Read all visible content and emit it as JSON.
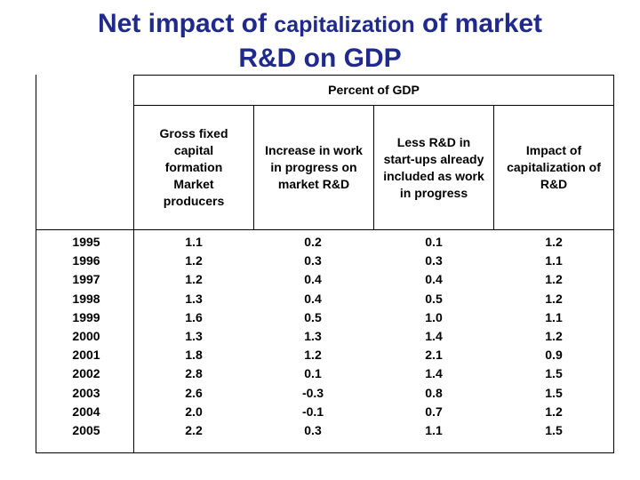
{
  "title": {
    "part1": "Net impact of ",
    "part2": "capitalization",
    "part3": " of market",
    "line2": "R&D on GDP"
  },
  "table": {
    "group_header": "Percent of GDP",
    "columns": [
      "Gross fixed capital formation Market producers",
      "Increase in work in progress on market R&D",
      "Less R&D in start-ups already included as work in progress",
      "Impact of capitalization of R&D"
    ],
    "years": [
      "1995",
      "1996",
      "1997",
      "1998",
      "1999",
      "2000",
      "2001",
      "2002",
      "2003",
      "2004",
      "2005"
    ],
    "values": {
      "gfcf": [
        "1.1",
        "1.2",
        "1.2",
        "1.3",
        "1.6",
        "1.3",
        "1.8",
        "2.8",
        "2.6",
        "2.0",
        "2.2"
      ],
      "wip": [
        "0.2",
        "0.3",
        "0.4",
        "0.4",
        "0.5",
        "1.3",
        "1.2",
        "0.1",
        "-0.3",
        "-0.1",
        "0.3"
      ],
      "startups": [
        "0.1",
        "0.3",
        "0.4",
        "0.5",
        "1.0",
        "1.4",
        "2.1",
        "1.4",
        "0.8",
        "0.7",
        "1.1"
      ],
      "impact": [
        "1.2",
        "1.1",
        "1.2",
        "1.2",
        "1.1",
        "1.2",
        "0.9",
        "1.5",
        "1.5",
        "1.2",
        "1.5"
      ]
    }
  }
}
